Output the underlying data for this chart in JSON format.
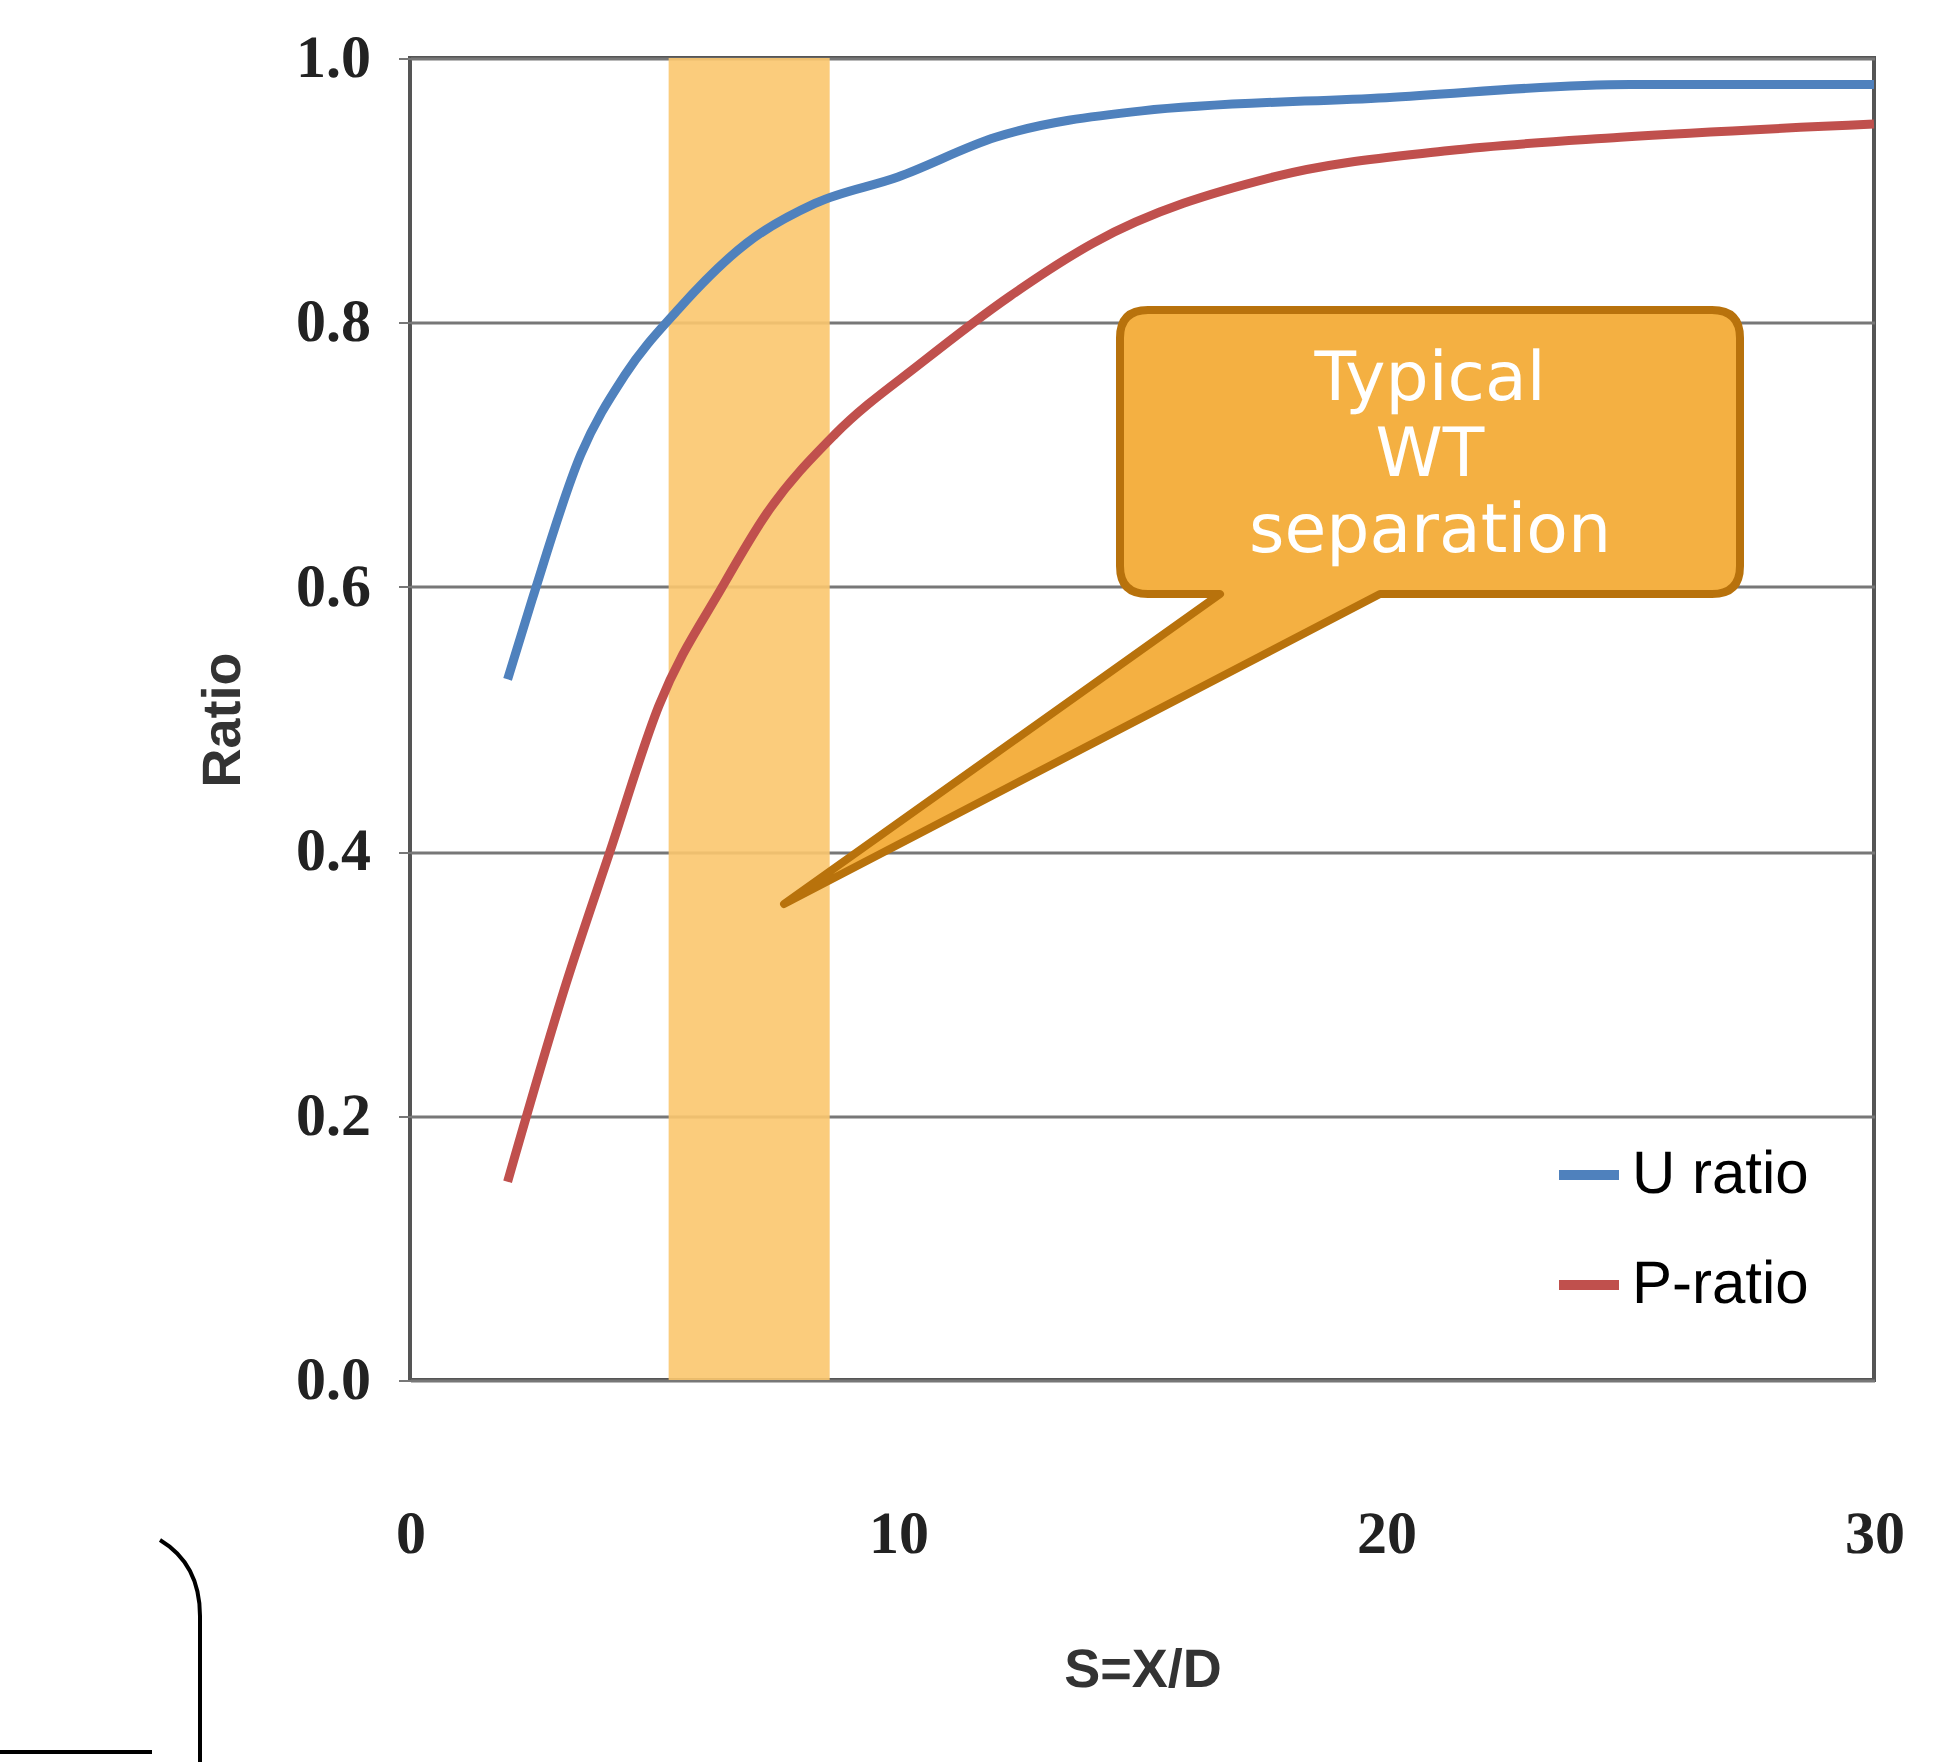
{
  "chart_data": {
    "type": "line",
    "xlabel": "S=X/D",
    "ylabel": "Ratio",
    "series": [
      {
        "name": "U ratio",
        "color": "#4f81bd",
        "x": [
          2,
          2.5,
          3.5,
          4.4,
          5.5,
          6.9,
          8.3,
          10,
          12,
          15,
          20,
          25,
          30
        ],
        "values": [
          0.53,
          0.59,
          0.7,
          0.76,
          0.81,
          0.86,
          0.89,
          0.91,
          0.94,
          0.96,
          0.97,
          0.98,
          0.98
        ]
      },
      {
        "name": "P-ratio",
        "color": "#c0504d",
        "x": [
          2,
          3.2,
          4.1,
          5.1,
          6.4,
          7.3,
          8.7,
          10.5,
          12.3,
          14,
          17.7,
          21.3,
          24.8,
          30
        ],
        "values": [
          0.15,
          0.3,
          0.4,
          0.51,
          0.6,
          0.655,
          0.715,
          0.77,
          0.82,
          0.86,
          0.91,
          0.93,
          0.94,
          0.95
        ]
      }
    ],
    "xlim": [
      0,
      30
    ],
    "xticks": [
      0,
      10,
      20,
      30
    ],
    "ylim": [
      0,
      1
    ],
    "yticks": [
      {
        "value": 0,
        "label": "0.0"
      },
      0.2,
      0.4,
      0.6,
      0.8,
      {
        "value": 1,
        "label": "1.0"
      }
    ],
    "grid": "y",
    "legend": "bottom right",
    "marker": "none",
    "line_style": "solid",
    "bands": [
      {
        "axis": "x",
        "from": 5.3,
        "to": 8.6,
        "color": "#fbc66e"
      }
    ],
    "annotations": [
      "Typical\nWT\nseparation"
    ]
  }
}
